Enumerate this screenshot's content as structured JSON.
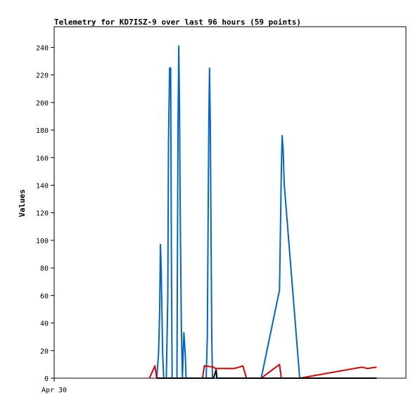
{
  "chart_data": {
    "type": "line",
    "title": "Telemetry for KD7ISZ-9 over last 96 hours (59 points)",
    "xlabel": "",
    "ylabel": "Values",
    "ylim": [
      0,
      255
    ],
    "xlim": [
      0,
      96
    ],
    "yticks": [
      0,
      20,
      40,
      60,
      80,
      100,
      120,
      140,
      160,
      180,
      200,
      220,
      240
    ],
    "xtick_labels": [
      {
        "x": 0,
        "label": "Apr 30"
      }
    ],
    "grid": false,
    "legend": "none",
    "series": [
      {
        "color": "#0066cc",
        "points": [
          [
            28.0,
            0
          ],
          [
            28.5,
            18
          ],
          [
            28.8,
            50
          ],
          [
            29.0,
            97
          ],
          [
            29.2,
            80
          ],
          [
            29.4,
            50
          ],
          [
            29.6,
            18
          ],
          [
            29.9,
            0
          ],
          [
            30.6,
            0
          ],
          [
            31.0,
            58
          ],
          [
            31.2,
            170
          ],
          [
            31.5,
            225
          ],
          [
            31.8,
            225
          ],
          [
            32.0,
            80
          ],
          [
            32.2,
            0
          ],
          [
            33.5,
            0
          ],
          [
            33.8,
            180
          ],
          [
            34.0,
            241
          ],
          [
            34.2,
            200
          ],
          [
            34.4,
            120
          ],
          [
            34.7,
            40
          ],
          [
            35.0,
            0
          ],
          [
            35.2,
            18
          ],
          [
            35.4,
            33
          ],
          [
            35.6,
            25
          ],
          [
            35.8,
            15
          ],
          [
            36.0,
            0
          ],
          [
            41.5,
            0
          ],
          [
            41.8,
            30
          ],
          [
            42.0,
            112
          ],
          [
            42.2,
            185
          ],
          [
            42.4,
            225
          ],
          [
            42.6,
            185
          ],
          [
            42.8,
            112
          ],
          [
            43.0,
            30
          ],
          [
            43.2,
            0
          ],
          [
            56.5,
            0
          ],
          [
            61.5,
            64
          ],
          [
            62.0,
            150
          ],
          [
            62.2,
            176
          ],
          [
            62.5,
            165
          ],
          [
            62.8,
            140
          ],
          [
            67.0,
            0
          ]
        ]
      },
      {
        "color": "#dd0000",
        "points": [
          [
            26.0,
            0
          ],
          [
            27.5,
            9
          ],
          [
            28.0,
            0
          ],
          [
            40.5,
            0
          ],
          [
            41.0,
            9
          ],
          [
            43.5,
            8
          ],
          [
            44.0,
            7
          ],
          [
            49.0,
            7
          ],
          [
            50.5,
            8
          ],
          [
            51.5,
            9
          ],
          [
            52.5,
            0
          ],
          [
            56.5,
            0
          ],
          [
            61.5,
            10
          ],
          [
            62.0,
            0
          ],
          [
            67.0,
            0
          ],
          [
            84.0,
            8
          ],
          [
            85.5,
            7
          ],
          [
            88.0,
            8
          ]
        ]
      },
      {
        "color": "#000000",
        "points": [
          [
            28.0,
            0
          ],
          [
            43.5,
            0
          ],
          [
            44.2,
            6
          ],
          [
            44.4,
            0
          ],
          [
            88.0,
            0
          ]
        ]
      }
    ]
  }
}
